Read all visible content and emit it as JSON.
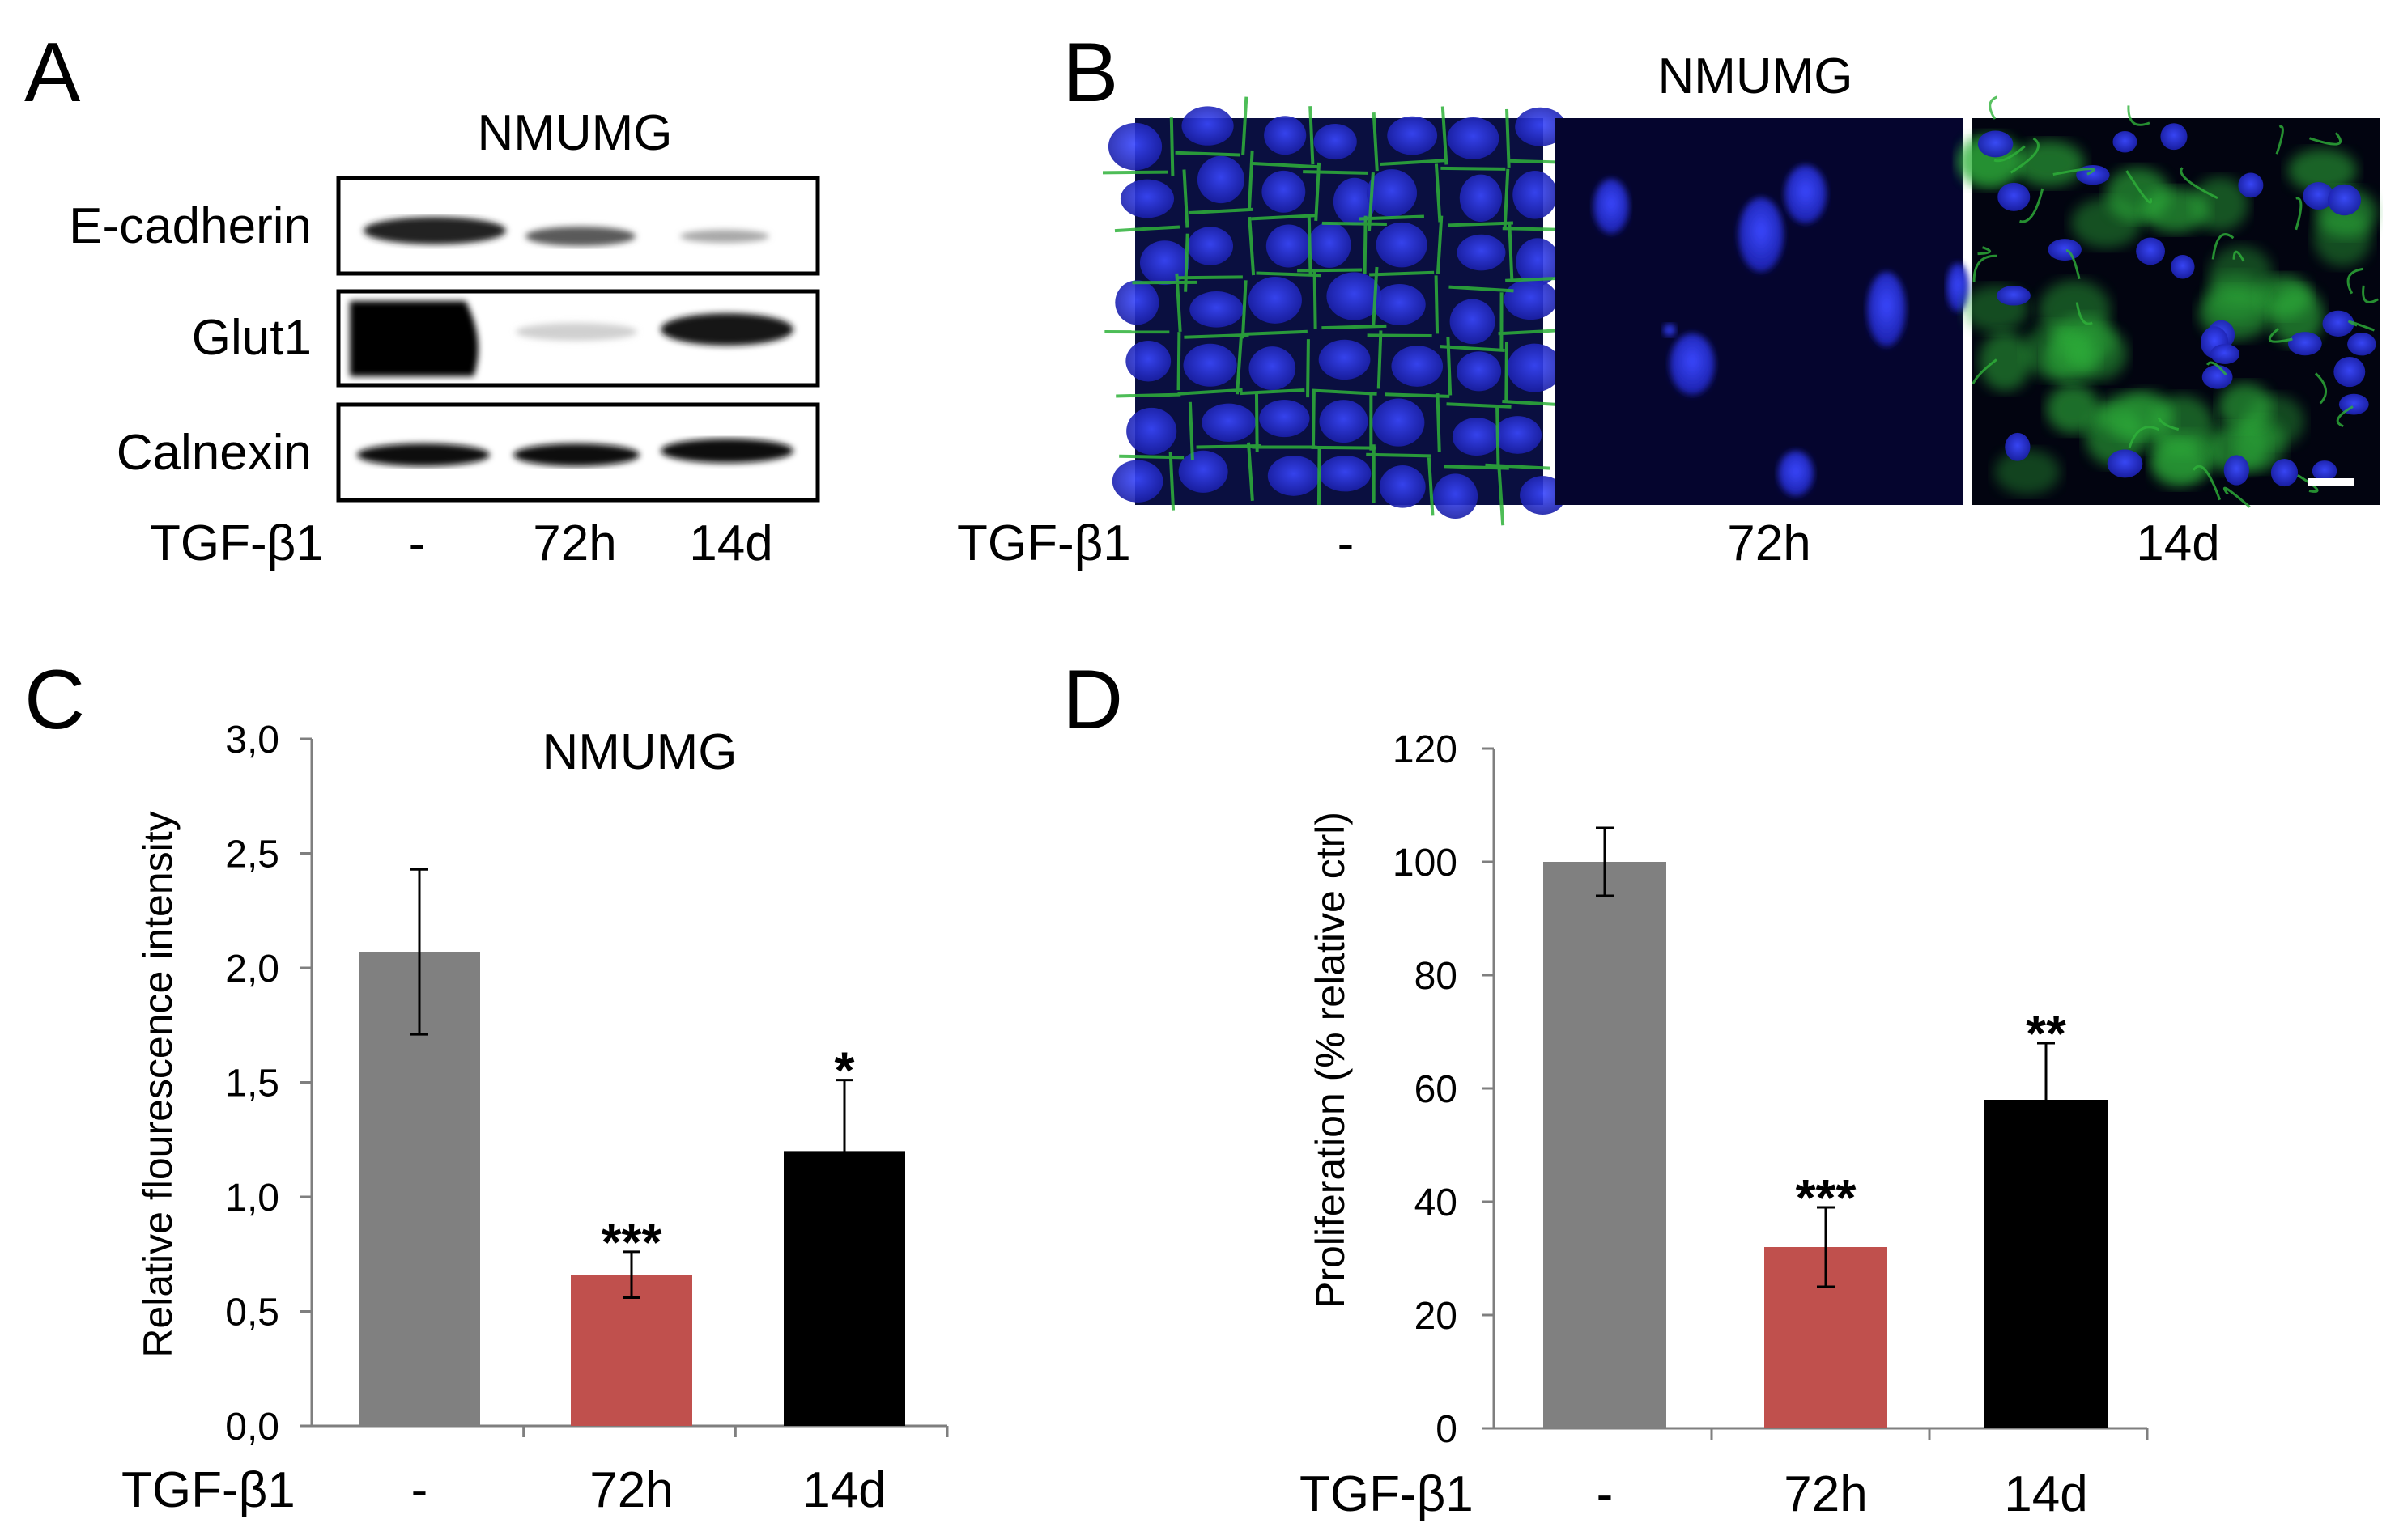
{
  "panels": {
    "A": {
      "letter": "A",
      "cell_line": "NMUMG",
      "rows": [
        "E-cadherin",
        "Glut1",
        "Calnexin"
      ],
      "treatment_label": "TGF-β1",
      "lanes": [
        "-",
        "72h",
        "14d"
      ]
    },
    "B": {
      "letter": "B",
      "cell_line": "NMUMG",
      "treatment_label": "TGF-β1",
      "lanes": [
        "-",
        "72h",
        "14d"
      ]
    },
    "C": {
      "letter": "C",
      "treatment_label": "TGF-β1"
    },
    "D": {
      "letter": "D",
      "treatment_label": "TGF-β1"
    }
  },
  "colors": {
    "bar_control": "#808080",
    "bar_72h": "#c0504d",
    "bar_14d": "#000000",
    "membrane_green": "#2fb23a",
    "nuclei_blue": "#1f2bd6"
  },
  "chart_data": [
    {
      "id": "C",
      "type": "bar",
      "title": "NMUMG",
      "ylabel": "Relative flourescence intensity",
      "categories": [
        "-",
        "72h",
        "14d"
      ],
      "values": [
        2.07,
        0.66,
        1.2
      ],
      "errors": [
        0.36,
        0.1,
        0.31
      ],
      "significance": [
        "",
        "***",
        "*"
      ],
      "ylim": [
        0,
        3
      ],
      "yticks": [
        "0,0",
        "0,5",
        "1,0",
        "1,5",
        "2,0",
        "2,5",
        "3,0"
      ],
      "ytick_values": [
        0,
        0.5,
        1,
        1.5,
        2,
        2.5,
        3
      ],
      "grid": false
    },
    {
      "id": "D",
      "type": "bar",
      "title": "",
      "ylabel": "Proliferation (% relative ctrl)",
      "categories": [
        "-",
        "72h",
        "14d"
      ],
      "values": [
        100,
        32,
        58
      ],
      "errors": [
        6,
        7,
        10
      ],
      "significance": [
        "",
        "***",
        "**"
      ],
      "ylim": [
        0,
        120
      ],
      "yticks": [
        "0",
        "20",
        "40",
        "60",
        "80",
        "100",
        "120"
      ],
      "ytick_values": [
        0,
        20,
        40,
        60,
        80,
        100,
        120
      ],
      "grid": false
    }
  ]
}
